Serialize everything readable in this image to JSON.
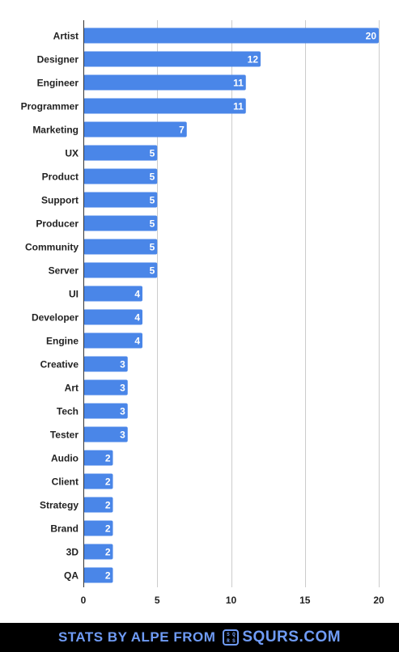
{
  "chart_data": {
    "type": "bar",
    "orientation": "horizontal",
    "categories": [
      "Artist",
      "Designer",
      "Engineer",
      "Programmer",
      "Marketing",
      "UX",
      "Product",
      "Support",
      "Producer",
      "Community",
      "Server",
      "UI",
      "Developer",
      "Engine",
      "Creative",
      "Art",
      "Tech",
      "Tester",
      "Audio",
      "Client",
      "Strategy",
      "Brand",
      "3D",
      "QA"
    ],
    "values": [
      20,
      12,
      11,
      11,
      7,
      5,
      5,
      5,
      5,
      5,
      5,
      4,
      4,
      4,
      3,
      3,
      3,
      3,
      2,
      2,
      2,
      2,
      2,
      2
    ],
    "xlim": [
      0,
      20
    ],
    "xticks": [
      0,
      5,
      10,
      15,
      20
    ],
    "grid": true,
    "bar_color": "#4a86e8",
    "title": "",
    "xlabel": "",
    "ylabel": ""
  },
  "footer": {
    "text": "STATS BY ALPE FROM",
    "logo_letters": [
      "S",
      "Q",
      "R",
      "S"
    ],
    "brand": "SQURS.COM",
    "color": "#6f9bf5"
  }
}
